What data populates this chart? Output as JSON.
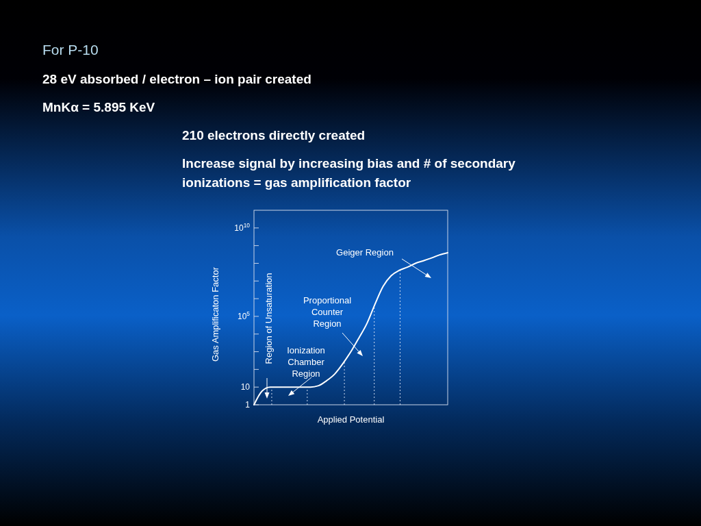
{
  "chart_data": {
    "type": "line",
    "title": "For P-10",
    "xlabel": "Applied Potential",
    "ylabel": "Gas Amplificaton Factor",
    "categories": [
      null,
      null,
      null,
      null,
      null,
      null,
      null,
      null,
      null,
      null,
      null,
      null,
      null,
      null,
      null,
      null,
      null,
      null,
      null,
      null,
      null,
      null,
      null,
      null,
      null
    ],
    "series": [
      {
        "color": "#ffffff",
        "values": [
          1,
          6,
          10,
          10,
          10,
          10,
          10,
          10,
          12,
          23,
          55,
          210,
          1000,
          6000,
          40000,
          500000,
          5000000,
          20000000,
          40000000,
          60000000,
          100000000,
          140000000,
          200000000,
          300000000,
          400000000
        ]
      }
    ],
    "log": "y",
    "ylim": [
      1,
      100000000000
    ],
    "yticks": [
      1,
      10,
      {
        "value": 100,
        "label": null
      },
      {
        "value": 1000,
        "label": null
      },
      {
        "value": 10000,
        "label": null
      },
      {
        "value": 100000,
        "label": "10$^{5}$"
      },
      {
        "value": 1000000,
        "label": null
      },
      {
        "value": 10000000,
        "label": null
      },
      {
        "value": 100000000,
        "label": null
      },
      {
        "value": 1000000000,
        "label": null
      },
      {
        "value": 10000000000,
        "label": "10$^{10}$"
      }
    ],
    "annotations": [
      "28 eV absorbed / electron – ion pair created",
      "MnKα = 5.895 KeV",
      "210 electrons directly created",
      "Increase signal by increasing bias and # of secondary ionizations = gas amplification factor",
      "Geiger Region",
      "Proportional Counter Region",
      "Ionization Chamber Region",
      "Region of Unsaturation"
    ],
    "grid": false,
    "marker": "none",
    "line_style": "solid"
  }
}
